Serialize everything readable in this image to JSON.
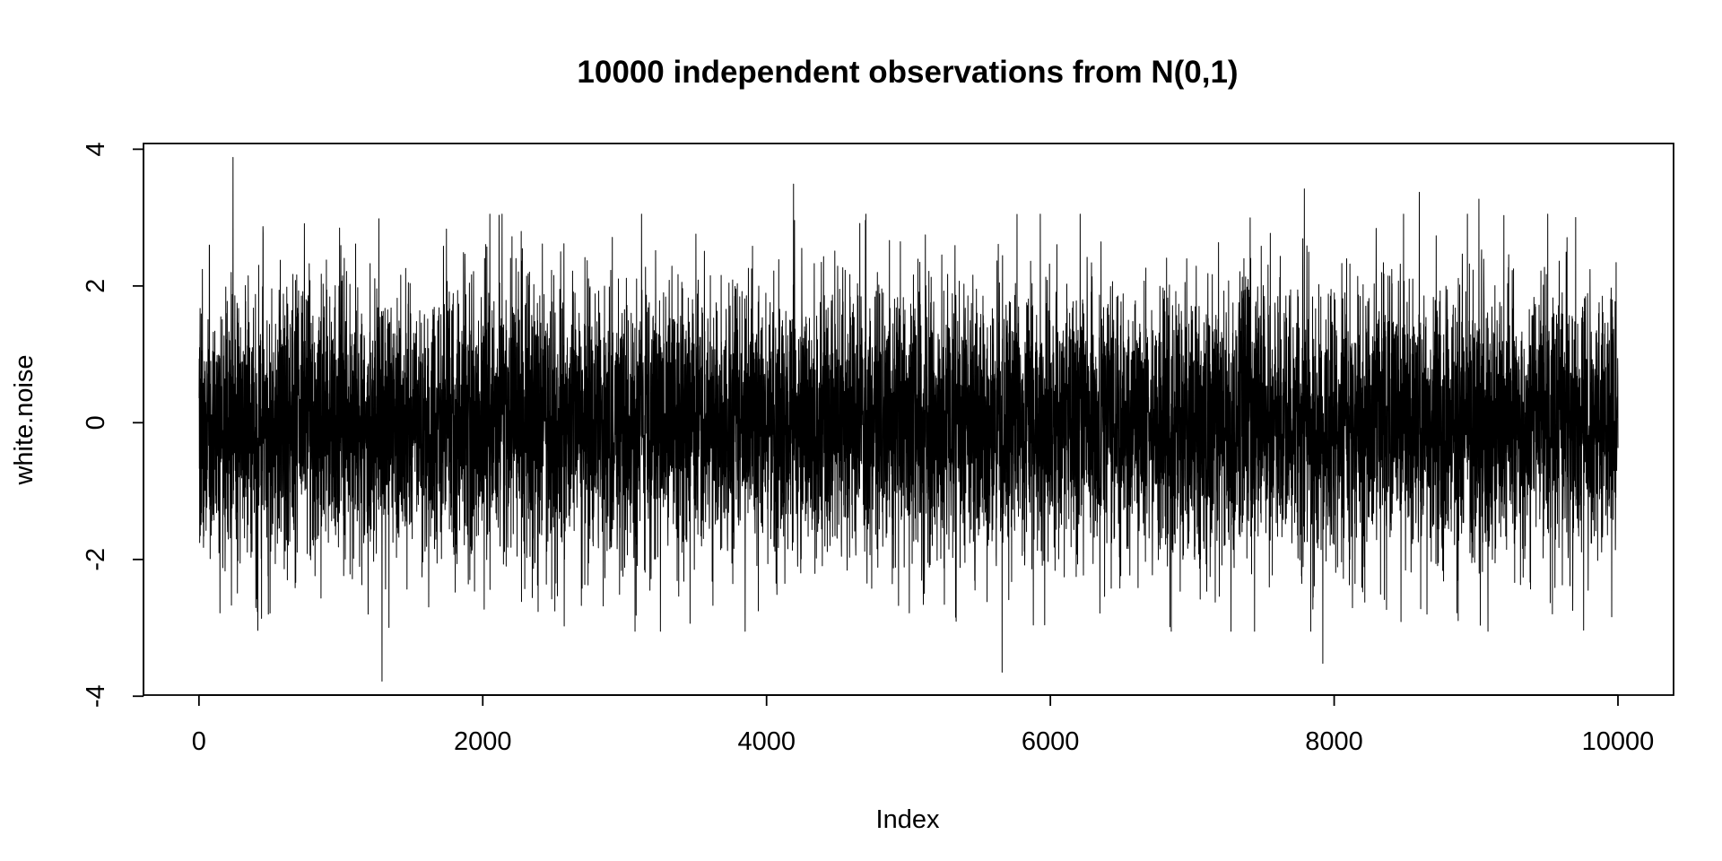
{
  "chart_data": {
    "type": "line",
    "title": "10000 independent observations from N(0,1)",
    "xlabel": "Index",
    "ylabel": "white.noise",
    "n": 10000,
    "xlim": [
      1,
      10000
    ],
    "ylim": [
      -3.8,
      3.9
    ],
    "x_ticks": [
      0,
      2000,
      4000,
      6000,
      8000,
      10000
    ],
    "x_tick_labels": [
      "0",
      "2000",
      "4000",
      "6000",
      "8000",
      "10000"
    ],
    "y_ticks": [
      -4,
      -2,
      0,
      2,
      4
    ],
    "y_tick_labels": [
      "-4",
      "-2",
      "0",
      "2",
      "4"
    ],
    "grid": false,
    "legend": "none",
    "line_color": "#000000",
    "series": [
      {
        "distribution": "N(0,1)",
        "length": 10000,
        "notable_points": [
          {
            "x": 240,
            "y": 3.88
          },
          {
            "x": 1290,
            "y": -3.78
          },
          {
            "x": 4190,
            "y": 3.49
          },
          {
            "x": 5660,
            "y": -3.65
          },
          {
            "x": 7790,
            "y": 3.42
          },
          {
            "x": 7920,
            "y": -3.52
          },
          {
            "x": 8600,
            "y": 3.37
          },
          {
            "x": 9020,
            "y": 3.27
          }
        ]
      }
    ]
  }
}
